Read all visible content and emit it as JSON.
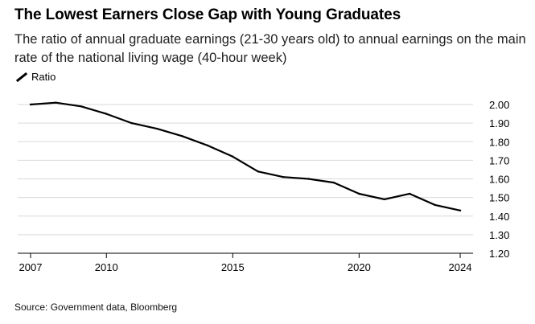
{
  "title": "The Lowest Earners Close Gap with Young Graduates",
  "subtitle": "The ratio of annual graduate earnings (21-30 years old) to annual earnings on the main rate of the national living wage (40-hour week)",
  "legend": {
    "label": "Ratio"
  },
  "source": "Source: Government data, Bloomberg",
  "colors": {
    "line": "#000000",
    "grid": "#d9d9d9",
    "axis": "#000000"
  },
  "chart_data": {
    "type": "line",
    "title": "The Lowest Earners Close Gap with Young Graduates",
    "xlabel": "",
    "ylabel": "",
    "xlim": [
      2007,
      2024
    ],
    "ylim": [
      1.2,
      2.0
    ],
    "xticks": [
      "2007",
      "2010",
      "2015",
      "2020",
      "2024"
    ],
    "yticks": [
      "2.00",
      "1.90",
      "1.80",
      "1.70",
      "1.60",
      "1.50",
      "1.40",
      "1.30",
      "1.20"
    ],
    "grid": true,
    "legend_position": "top-left",
    "series": [
      {
        "name": "Ratio",
        "x": [
          2007,
          2008,
          2009,
          2010,
          2011,
          2012,
          2013,
          2014,
          2015,
          2016,
          2017,
          2018,
          2019,
          2020,
          2021,
          2022,
          2023,
          2024
        ],
        "values": [
          2.0,
          2.01,
          1.99,
          1.95,
          1.9,
          1.87,
          1.83,
          1.78,
          1.72,
          1.64,
          1.61,
          1.6,
          1.58,
          1.52,
          1.49,
          1.52,
          1.46,
          1.43
        ]
      }
    ]
  }
}
